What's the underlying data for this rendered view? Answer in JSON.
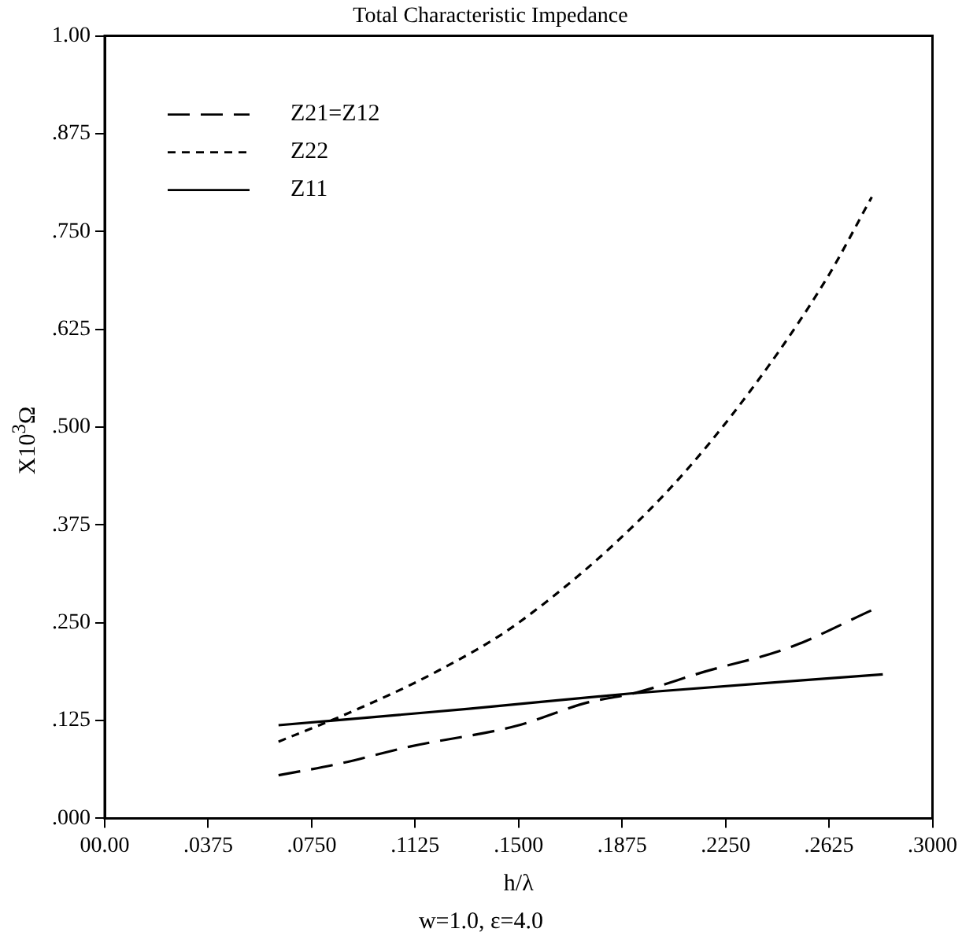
{
  "chart_data": {
    "type": "line",
    "title": "Total Characteristic Impedance",
    "xlabel": "h/λ",
    "ylabel": "X10$^{3}$Ω",
    "annotations": [
      "w=1.0, ε=4.0"
    ],
    "xlim": [
      0,
      0.3
    ],
    "xticks": [
      {
        "value": 0,
        "label": "00.00"
      },
      {
        "value": 0.0375,
        "label": ".0375"
      },
      {
        "value": 0.075,
        "label": ".0750"
      },
      {
        "value": 0.1125,
        "label": ".1125"
      },
      {
        "value": 0.15,
        "label": ".1500"
      },
      {
        "value": 0.1875,
        "label": ".1875"
      },
      {
        "value": 0.225,
        "label": ".2250"
      },
      {
        "value": 0.2625,
        "label": ".2625"
      },
      {
        "value": 0.3,
        "label": ".3000"
      }
    ],
    "ylim": [
      0,
      1
    ],
    "yticks": [
      {
        "value": 0,
        "label": ".000"
      },
      {
        "value": 0.125,
        "label": ".125"
      },
      {
        "value": 0.25,
        "label": ".250"
      },
      {
        "value": 0.375,
        "label": ".375"
      },
      {
        "value": 0.5,
        "label": ".500"
      },
      {
        "value": 0.625,
        "label": ".625"
      },
      {
        "value": 0.75,
        "label": ".750"
      },
      {
        "value": 0.875,
        "label": ".875"
      },
      {
        "value": 1,
        "label": "1.00"
      }
    ],
    "grid": false,
    "legend": "top left",
    "marker": "none",
    "series": [
      {
        "name": "Z21=Z12",
        "color": "#000000",
        "line_style": "dashed",
        "x": [
          0.063,
          0.084,
          0.111,
          0.149,
          0.175,
          0.192,
          0.217,
          0.248,
          0.278
        ],
        "values": [
          0.055,
          0.069,
          0.092,
          0.118,
          0.148,
          0.16,
          0.187,
          0.218,
          0.266
        ]
      },
      {
        "name": "Z22",
        "color": "#000000",
        "line_style": "dotted",
        "x": [
          0.063,
          0.09,
          0.12,
          0.15,
          0.196,
          0.227,
          0.261,
          0.278
        ],
        "values": [
          0.098,
          0.137,
          0.187,
          0.25,
          0.389,
          0.514,
          0.686,
          0.794
        ]
      },
      {
        "name": "Z11",
        "color": "#000000",
        "line_style": "solid",
        "x": [
          0.063,
          0.132,
          0.192,
          0.282
        ],
        "values": [
          0.119,
          0.14,
          0.16,
          0.184
        ]
      }
    ]
  }
}
